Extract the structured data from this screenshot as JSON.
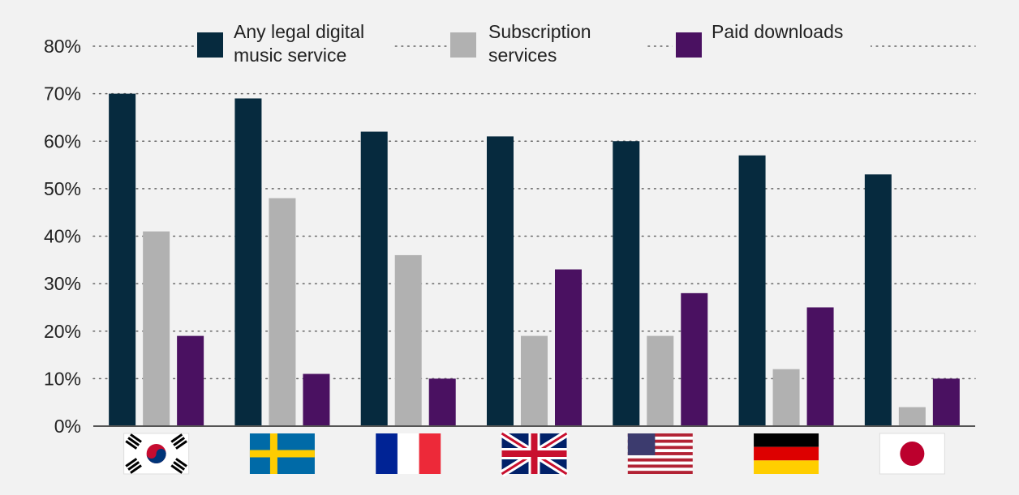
{
  "chart_data": {
    "type": "bar",
    "title": "",
    "xlabel": "",
    "ylabel": "",
    "ylim": [
      0,
      80
    ],
    "yticks": [
      0,
      10,
      20,
      30,
      40,
      50,
      60,
      70,
      80
    ],
    "ytick_labels": [
      "0%",
      "10%",
      "20%",
      "30%",
      "40%",
      "50%",
      "60%",
      "70%",
      "80%"
    ],
    "grid": "horizontal-dotted",
    "legend_position": "top",
    "categories": [
      "south-korea-flag",
      "sweden-flag",
      "france-flag",
      "uk-flag",
      "usa-flag",
      "germany-flag",
      "japan-flag"
    ],
    "series": [
      {
        "name": "Any legal digital music service",
        "legend_lines": [
          "Any legal digital",
          "music service"
        ],
        "color": "#062a3e",
        "values": [
          70,
          69,
          62,
          61,
          60,
          57,
          53
        ]
      },
      {
        "name": "Subscription services",
        "legend_lines": [
          "Subscription",
          "services"
        ],
        "color": "#b1b1b1",
        "values": [
          41,
          48,
          36,
          19,
          19,
          12,
          4
        ]
      },
      {
        "name": "Paid downloads",
        "legend_lines": [
          "Paid downloads"
        ],
        "color": "#4a1161",
        "values": [
          19,
          11,
          10,
          33,
          28,
          25,
          10
        ]
      }
    ]
  }
}
